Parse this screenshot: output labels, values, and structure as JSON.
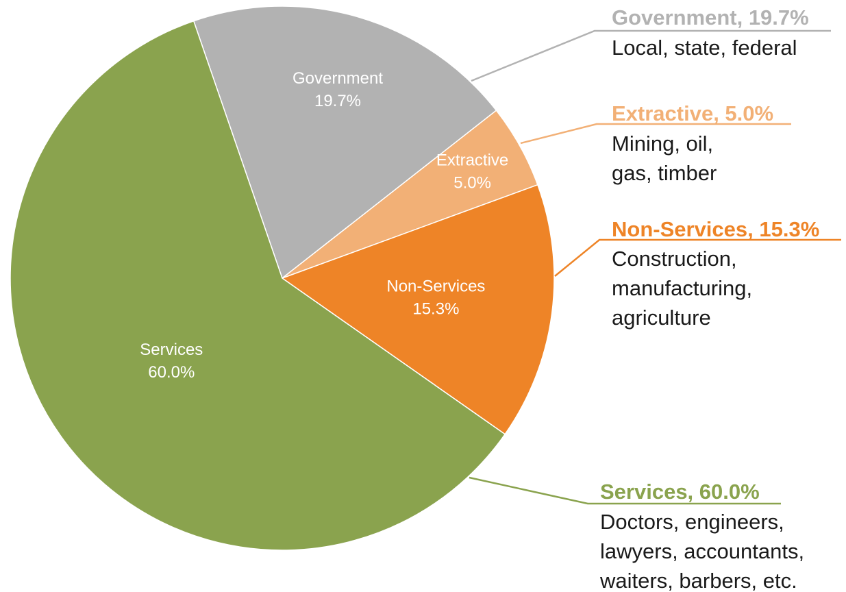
{
  "chart_data": {
    "type": "pie",
    "title": "",
    "slices": [
      {
        "label": "Government",
        "value": 19.7,
        "value_text": "19.7%",
        "color": "#B2B2B2",
        "inner_label_color": "#ffffff",
        "callout_title": "Government, 19.7%",
        "callout_lines": [
          "Local, state, federal"
        ]
      },
      {
        "label": "Extractive",
        "value": 5.0,
        "value_text": "5.0%",
        "color": "#F2B076",
        "inner_label_color": "#ffffff",
        "callout_title": "Extractive, 5.0%",
        "callout_lines": [
          "Mining, oil,",
          "gas, timber"
        ]
      },
      {
        "label": "Non-Services",
        "value": 15.3,
        "value_text": "15.3%",
        "color": "#EE8427",
        "inner_label_color": "#ffffff",
        "callout_title": "Non-Services, 15.3%",
        "callout_lines": [
          "Construction,",
          "manufacturing,",
          "agriculture"
        ]
      },
      {
        "label": "Services",
        "value": 60.0,
        "value_text": "60.0%",
        "color": "#8AA34E",
        "inner_label_color": "#ffffff",
        "callout_title": "Services, 60.0%",
        "callout_lines": [
          "Doctors, engineers,",
          "lawyers, accountants,",
          "waiters, barbers, etc."
        ]
      }
    ],
    "start_angle_deg": -19,
    "direction": "clockwise",
    "legend": "callouts-right"
  }
}
